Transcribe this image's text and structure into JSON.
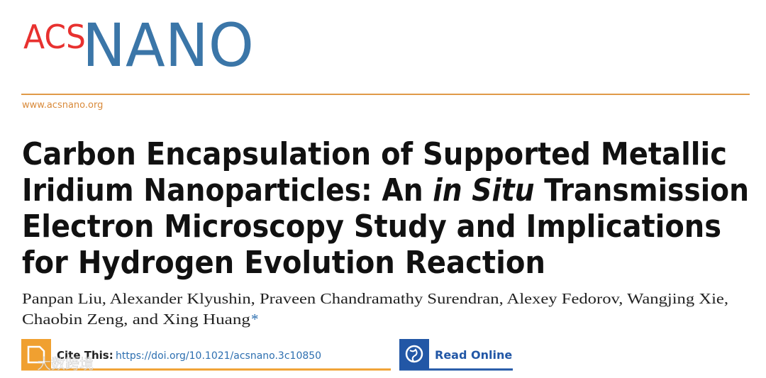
{
  "logo": {
    "acs": "ACS",
    "nano": "NANO"
  },
  "url": "www.acsnano.org",
  "title": {
    "line1": "Carbon Encapsulation of Supported Metallic",
    "line2_before": "Iridium Nanoparticles: An ",
    "line2_italic": "in Situ",
    "line2_after": " Transmission",
    "line3": "Electron Microscopy Study and Implications",
    "line4": "for Hydrogen Evolution Reaction"
  },
  "authors": {
    "line1": "Panpan Liu, Alexander Klyushin, Praveen Chandramathy Surendran, Alexey Fedorov, Wangjing Xie,",
    "line2": "Chaobin Zeng, and Xing Huang",
    "corresponding": "*"
  },
  "cite": {
    "label": "Cite This:",
    "doi": "https://doi.org/10.1021/acsnano.3c10850"
  },
  "read_online": "Read Online",
  "watermark": "大数跨境"
}
